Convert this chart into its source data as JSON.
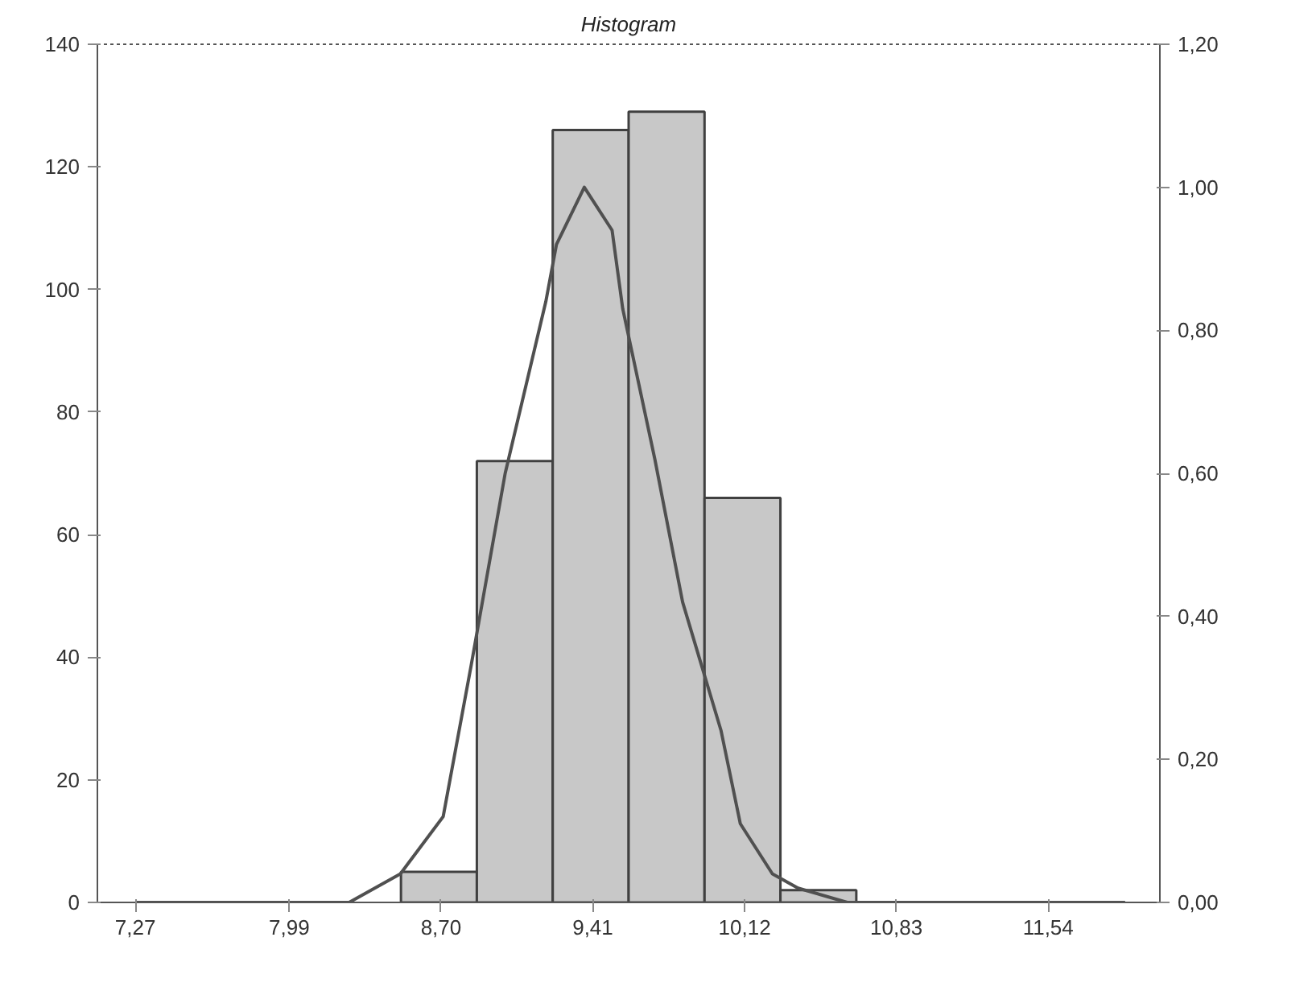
{
  "chart_data": {
    "type": "histogram",
    "title": "Histogram",
    "bins": [
      7.0925,
      7.4475,
      7.8025,
      8.1575,
      8.5125,
      8.8675,
      9.2225,
      9.5775,
      9.9325,
      10.2875,
      10.6425,
      10.9975,
      11.3525,
      11.7075,
      12.0625
    ],
    "values": [
      0,
      0,
      0,
      0,
      5,
      72,
      126,
      129,
      66,
      2,
      0,
      0,
      0,
      0
    ],
    "color": "#c8c8c8",
    "series": [
      {
        "type": "line",
        "axis": "y2",
        "color": "#505050",
        "x": [
          7.27,
          7.8,
          8.27,
          8.51,
          8.71,
          8.84,
          9.0,
          9.19,
          9.24,
          9.37,
          9.5,
          9.55,
          9.7,
          9.83,
          9.88,
          10.01,
          10.1,
          10.25,
          10.37,
          10.6,
          11.2,
          11.9
        ],
        "values": [
          0,
          0,
          0.0,
          0.04,
          0.12,
          0.33,
          0.6,
          0.84,
          0.92,
          1.0,
          0.94,
          0.83,
          0.62,
          0.42,
          0.37,
          0.24,
          0.11,
          0.04,
          0.02,
          0.0,
          0,
          0
        ]
      }
    ],
    "xlim": [
      7.0925,
      12.0625
    ],
    "xticks": [
      {
        "value": 7.27,
        "label": "7,27"
      },
      {
        "value": 7.99,
        "label": "7,99"
      },
      {
        "value": 8.7,
        "label": "8,70"
      },
      {
        "value": 9.41,
        "label": "9,41"
      },
      {
        "value": 10.12,
        "label": "10,12"
      },
      {
        "value": 10.83,
        "label": "10,83"
      },
      {
        "value": 11.54,
        "label": "11,54"
      }
    ],
    "ylim": [
      0,
      140
    ],
    "yticks": [
      0,
      20,
      40,
      60,
      80,
      100,
      120,
      140
    ],
    "y2lim": [
      0,
      1.2
    ],
    "y2ticks": [
      {
        "value": 0,
        "label": "0,00"
      },
      {
        "value": 0.2,
        "label": "0,20"
      },
      {
        "value": 0.4,
        "label": "0,40"
      },
      {
        "value": 0.6,
        "label": "0,60"
      },
      {
        "value": 0.8,
        "label": "0,80"
      },
      {
        "value": 1.0,
        "label": "1,00"
      },
      {
        "value": 1.2,
        "label": "1,20"
      }
    ],
    "grid": false
  }
}
